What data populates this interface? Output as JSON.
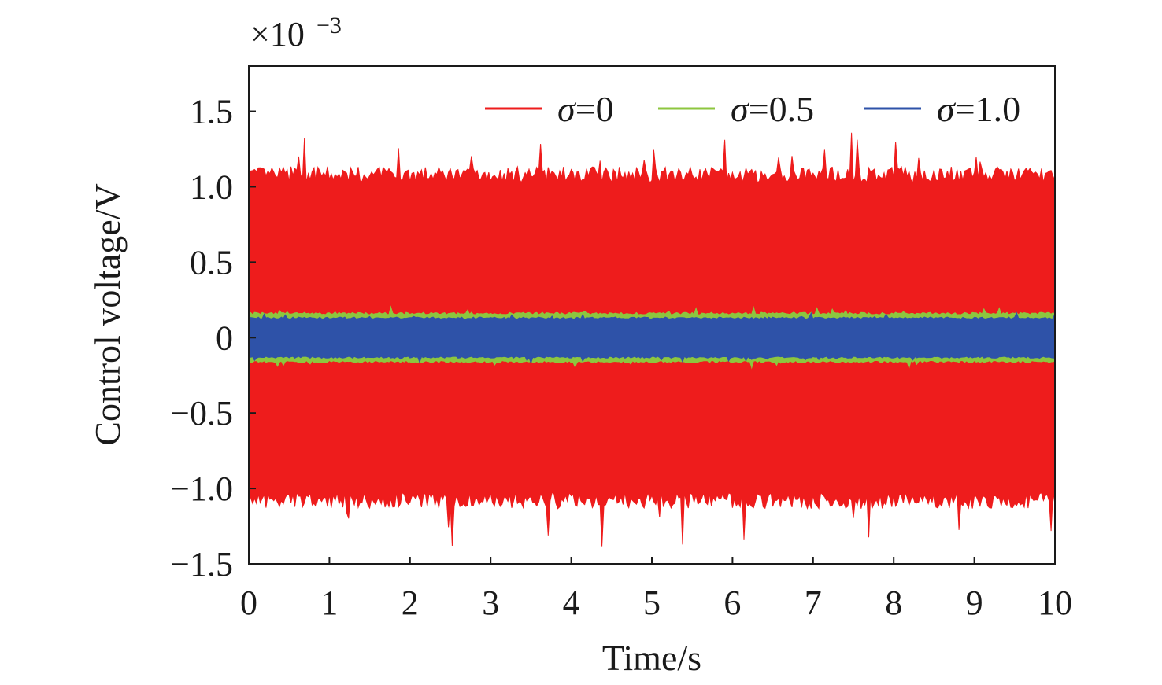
{
  "chart_data": {
    "type": "line",
    "title": "",
    "xlabel": "Time/s",
    "ylabel": "Control voltage/V",
    "y_scale_label": "×10",
    "y_scale_exponent": "−3",
    "xlim": [
      0,
      10
    ],
    "ylim": [
      -1.5,
      1.8
    ],
    "x_ticks": [
      0,
      1,
      2,
      3,
      4,
      5,
      6,
      7,
      8,
      9,
      10
    ],
    "x_tick_labels": [
      "0",
      "1",
      "2",
      "3",
      "4",
      "5",
      "6",
      "7",
      "8",
      "9",
      "10"
    ],
    "y_ticks": [
      -1.5,
      -1.0,
      -0.5,
      0,
      0.5,
      1.0,
      1.5
    ],
    "y_tick_labels": [
      "−1.5",
      "−1.0",
      "−0.5",
      "0",
      "0.5",
      "1.0",
      "1.5"
    ],
    "legend_position": "top-right",
    "grid": false,
    "series": [
      {
        "name": "σ=0",
        "symbol": "σ",
        "value_text": "=0",
        "color": "#ee1c1c",
        "amplitude": 1.08
      },
      {
        "name": "σ=0.5",
        "symbol": "σ",
        "value_text": "=0.5",
        "color": "#8dc63f",
        "amplitude": 0.16
      },
      {
        "name": "σ=1.0",
        "symbol": "σ",
        "value_text": "=1.0",
        "color": "#2e52a8",
        "amplitude": 0.13
      }
    ]
  }
}
